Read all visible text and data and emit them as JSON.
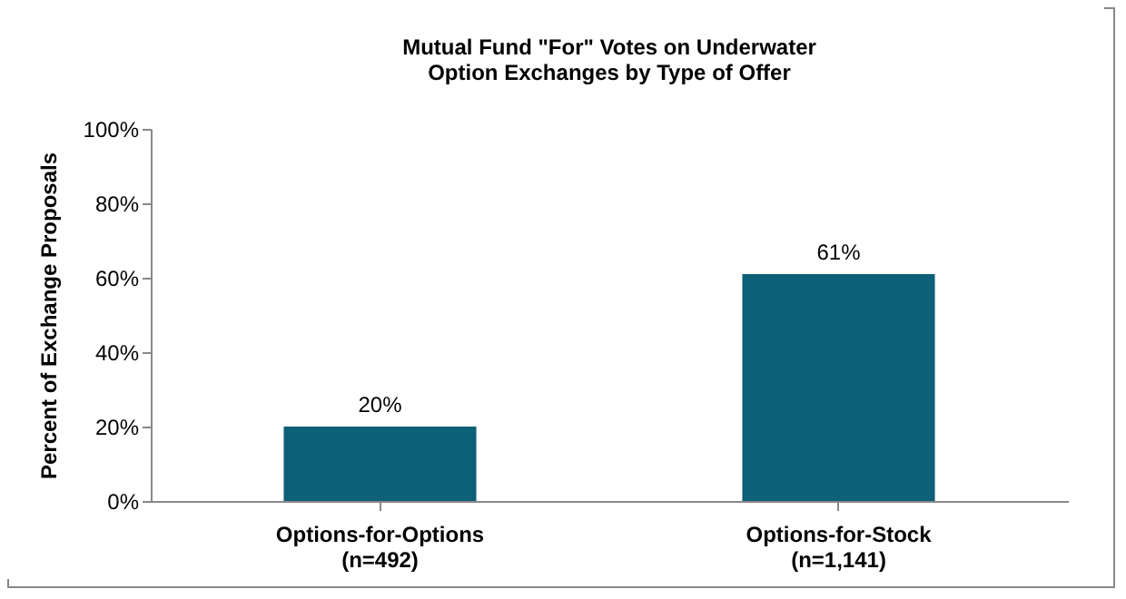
{
  "chart_data": {
    "type": "bar",
    "title": [
      "Mutual Fund \"For\" Votes on Underwater",
      "Option Exchanges by Type of Offer"
    ],
    "ylabel": "Percent of Exchange Proposals",
    "categories": [
      "Options-for-Options\n(n=492)",
      "Options-for-Stock\n(n=1,141)"
    ],
    "values": [
      20,
      61
    ],
    "color": "#0e5f78",
    "value_labels": [
      "20%",
      "61%"
    ],
    "ylim": [
      0,
      100
    ],
    "yticks": [
      {
        "value": 0,
        "label": "0%"
      },
      {
        "value": 20,
        "label": "20%"
      },
      {
        "value": 40,
        "label": "40%"
      },
      {
        "value": 60,
        "label": "60%"
      },
      {
        "value": 80,
        "label": "80%"
      },
      {
        "value": 100,
        "label": "100%"
      }
    ],
    "grid": false
  }
}
